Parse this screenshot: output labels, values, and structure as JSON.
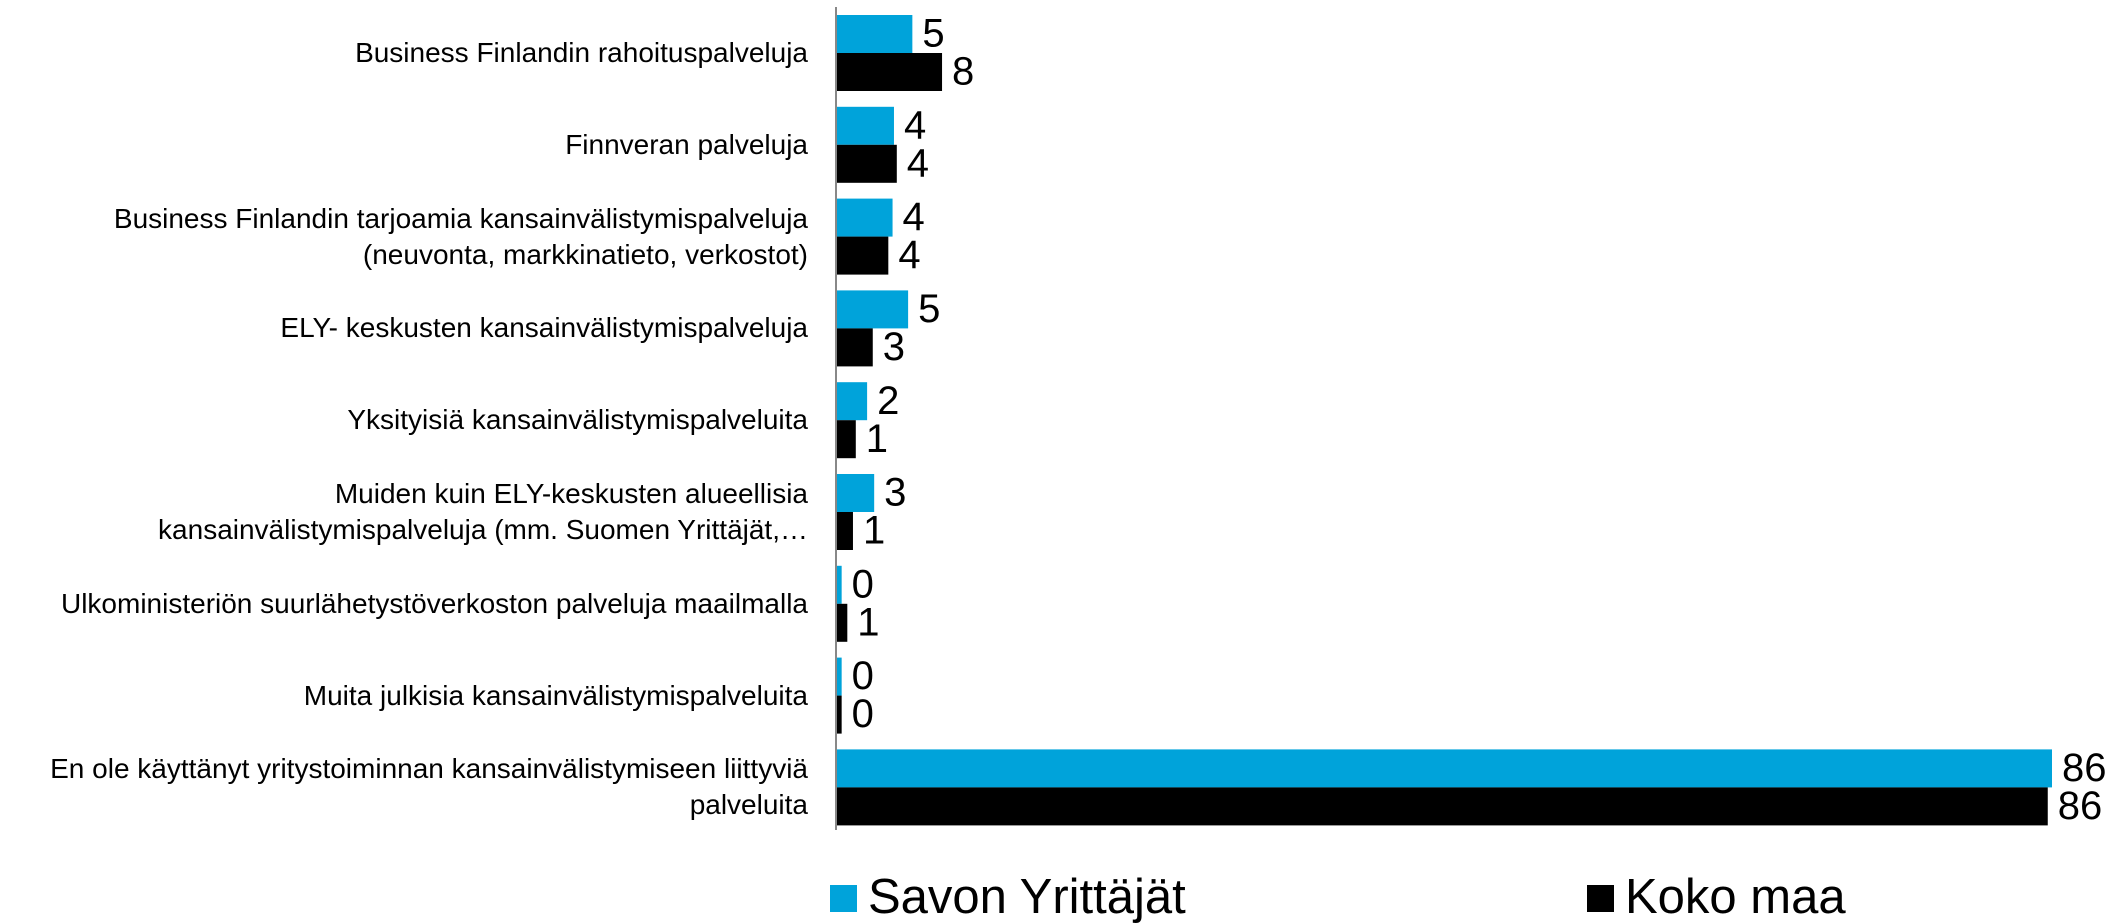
{
  "chart_data": {
    "type": "barh",
    "categories": [
      "Business Finlandin rahoituspalveluja",
      "Finnveran palveluja",
      "Business Finlandin tarjoamia kansainvälistymispalveluja (neuvonta, markkinatieto, verkostot)",
      "ELY- keskusten kansainvälistymispalveluja",
      "Yksityisiä kansainvälistymispalveluita",
      "Muiden kuin ELY-keskusten alueellisia kansainvälistymispalveluja (mm. Suomen Yrittäjät,…",
      "Ulkoministeriön suurlähetystöverkoston palveluja maailmalla",
      "Muita julkisia kansainvälistymispalveluita",
      "En ole käyttänyt yritystoiminnan kansainvälistymiseen liittyviä palveluita"
    ],
    "series": [
      {
        "name": "Savon Yrittäjät",
        "color": "#00a3da",
        "values": [
          5.4,
          4.1,
          4.0,
          5.1,
          2.2,
          2.7,
          0.4,
          0.4,
          86.0
        ],
        "value_labels": [
          "5",
          "4",
          "4",
          "5",
          "2",
          "3",
          "0",
          "0",
          "86"
        ]
      },
      {
        "name": "Koko maa",
        "color": "#000000",
        "values": [
          7.5,
          4.3,
          3.7,
          2.6,
          1.4,
          1.2,
          0.8,
          0.4,
          85.7
        ],
        "value_labels": [
          "8",
          "4",
          "4",
          "3",
          "1",
          "1",
          "1",
          "0",
          "86"
        ]
      }
    ],
    "xlim": [
      0,
      86
    ],
    "legend": "bottom"
  }
}
